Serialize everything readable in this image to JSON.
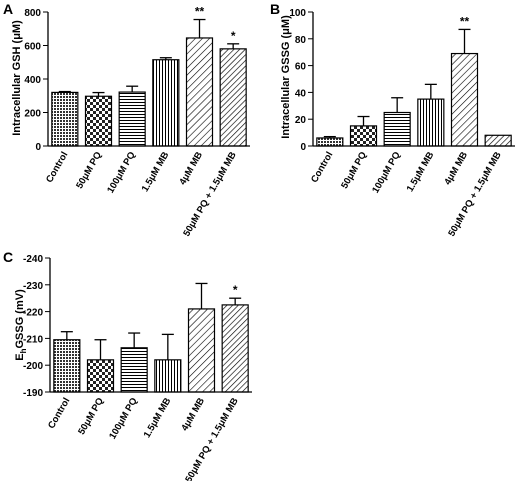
{
  "chart_data": [
    {
      "panel_label": "A",
      "type": "bar",
      "categories": [
        "Control",
        "50μM PQ",
        "100μM PQ",
        "1.5μM MB",
        "4μM MB",
        "50μM PQ + 1.5μM MB"
      ],
      "values": [
        320,
        297,
        322,
        515,
        645,
        580
      ],
      "error_bars": [
        5,
        22,
        35,
        12,
        110,
        30
      ],
      "annotations": [
        "",
        "",
        "",
        "",
        "**",
        "*"
      ],
      "patterns": [
        "crosshatch",
        "checker",
        "horizontal",
        "vertical",
        "diagonal",
        "diagonal-dense"
      ],
      "ylabel": "Intracellular GSH (μM)",
      "ylim": [
        0,
        800
      ],
      "yticks": [
        0,
        200,
        400,
        600,
        800
      ],
      "inverted": false
    },
    {
      "panel_label": "B",
      "type": "bar",
      "categories": [
        "Control",
        "50μM PQ",
        "100μM PQ",
        "1.5μM MB",
        "4μM MB",
        "50μM PQ + 1.5μM MB"
      ],
      "values": [
        6,
        15,
        25,
        35,
        69,
        8
      ],
      "error_bars": [
        1,
        7,
        11,
        11,
        18,
        0
      ],
      "annotations": [
        "",
        "",
        "",
        "",
        "**",
        ""
      ],
      "patterns": [
        "crosshatch",
        "checker",
        "horizontal",
        "vertical",
        "diagonal",
        "diagonal-dense"
      ],
      "ylabel": "Intracellular GSSG (μM)",
      "ylim": [
        0,
        100
      ],
      "yticks": [
        0,
        20,
        40,
        60,
        80,
        100
      ],
      "inverted": false
    },
    {
      "panel_label": "C",
      "type": "bar",
      "categories": [
        "Control",
        "50μM PQ",
        "100μM PQ",
        "1.5μM MB",
        "4μM MB",
        "50μM PQ + 1.5μM MB"
      ],
      "values": [
        -209.5,
        -202,
        -206.5,
        -202,
        -221,
        -222.5
      ],
      "error_bars": [
        3,
        7.5,
        5.5,
        9.5,
        9.5,
        2.5
      ],
      "annotations": [
        "",
        "",
        "",
        "",
        "",
        "*"
      ],
      "patterns": [
        "crosshatch",
        "checker",
        "horizontal",
        "vertical",
        "diagonal",
        "diagonal-dense"
      ],
      "ylabel_main": "E",
      "ylabel_sub": "h",
      "ylabel_rest": "GSSG (mV)",
      "ylim": [
        -190,
        -240
      ],
      "yticks": [
        -190,
        -200,
        -210,
        -220,
        -230,
        -240
      ],
      "inverted": true
    }
  ]
}
